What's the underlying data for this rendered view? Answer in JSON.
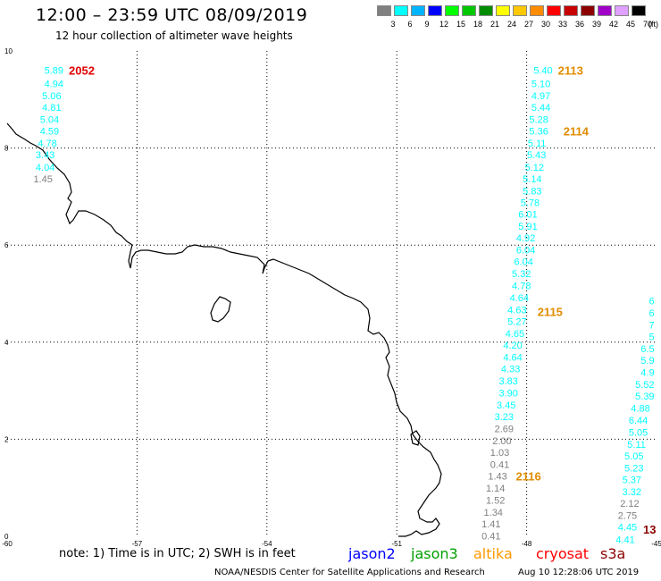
{
  "header": {
    "title": "12:00 – 23:59 UTC 08/09/2019",
    "subtitle": "12 hour collection of altimeter wave heights"
  },
  "color_scale": {
    "labels": [
      "3",
      "6",
      "9",
      "12",
      "15",
      "18",
      "21",
      "24",
      "27",
      "30",
      "33",
      "36",
      "39",
      "42",
      "45",
      "70"
    ],
    "unit": "(ft)",
    "colors": [
      "#808080",
      "#00ffff",
      "#00b4ff",
      "#0000ff",
      "#00ff00",
      "#00c800",
      "#008c00",
      "#ffff00",
      "#ffc800",
      "#ff8c00",
      "#ff0000",
      "#c80000",
      "#8c0000",
      "#a000c8",
      "#e0a0ff",
      "#000000"
    ]
  },
  "map": {
    "lon_ticks": [
      "-60",
      "-57",
      "-54",
      "-51",
      "-48",
      "-45"
    ],
    "lat_ticks": [
      "0",
      "2",
      "4",
      "6",
      "8",
      "10"
    ],
    "lon_range": [
      -60,
      -45
    ],
    "lat_range": [
      0,
      10
    ],
    "gridlines": true
  },
  "passes": [
    {
      "time": "2052",
      "time_color": "#e00000",
      "label_side": "left",
      "values": [
        {
          "v": "5.89",
          "lon": -58.7,
          "lat": 9.6
        },
        {
          "v": "4.94",
          "lon": -58.7,
          "lat": 9.33
        },
        {
          "v": "5.06",
          "lon": -58.75,
          "lat": 9.08
        },
        {
          "v": "4.81",
          "lon": -58.75,
          "lat": 8.84
        },
        {
          "v": "5.04",
          "lon": -58.8,
          "lat": 8.59
        },
        {
          "v": "4.59",
          "lon": -58.8,
          "lat": 8.35
        },
        {
          "v": "4.78",
          "lon": -58.85,
          "lat": 8.1
        },
        {
          "v": "3.43",
          "lon": -58.9,
          "lat": 7.86
        },
        {
          "v": "4.04",
          "lon": -58.9,
          "lat": 7.61
        },
        {
          "v": "1.45",
          "lon": -58.95,
          "lat": 7.37
        }
      ]
    },
    {
      "time": "2113",
      "time_color": "#e08c00",
      "label_side": "left",
      "values": [
        {
          "v": "5.40",
          "lon": -47.4,
          "lat": 9.6
        },
        {
          "v": "5.10",
          "lon": -47.45,
          "lat": 9.33
        },
        {
          "v": "4.97",
          "lon": -47.45,
          "lat": 9.08
        },
        {
          "v": "5.44",
          "lon": -47.45,
          "lat": 8.84
        },
        {
          "v": "5.28",
          "lon": -47.5,
          "lat": 8.59
        },
        {
          "v": "5.36",
          "lon": -47.5,
          "lat": 8.35
        },
        {
          "v": "5.11",
          "lon": -47.55,
          "lat": 8.1
        },
        {
          "v": "5.43",
          "lon": -47.55,
          "lat": 7.86
        },
        {
          "v": "5.12",
          "lon": -47.6,
          "lat": 7.61
        },
        {
          "v": "5.14",
          "lon": -47.65,
          "lat": 7.37
        },
        {
          "v": "5.83",
          "lon": -47.65,
          "lat": 7.12
        },
        {
          "v": "5.78",
          "lon": -47.7,
          "lat": 6.88
        },
        {
          "v": "6.01",
          "lon": -47.75,
          "lat": 6.64
        },
        {
          "v": "5.91",
          "lon": -47.75,
          "lat": 6.39
        },
        {
          "v": "4.92",
          "lon": -47.8,
          "lat": 6.15
        },
        {
          "v": "6.04",
          "lon": -47.8,
          "lat": 5.9
        },
        {
          "v": "6.04",
          "lon": -47.85,
          "lat": 5.66
        },
        {
          "v": "5.32",
          "lon": -47.9,
          "lat": 5.41
        },
        {
          "v": "4.78",
          "lon": -47.9,
          "lat": 5.17
        },
        {
          "v": "4.64",
          "lon": -47.95,
          "lat": 4.92
        },
        {
          "v": "4.63",
          "lon": -48.0,
          "lat": 4.67
        },
        {
          "v": "5.27",
          "lon": -48.0,
          "lat": 4.43
        },
        {
          "v": "4.65",
          "lon": -48.05,
          "lat": 4.18
        },
        {
          "v": "4.20",
          "lon": -48.1,
          "lat": 3.94
        },
        {
          "v": "4.64",
          "lon": -48.1,
          "lat": 3.69
        },
        {
          "v": "4.33",
          "lon": -48.15,
          "lat": 3.45
        },
        {
          "v": "3.83",
          "lon": -48.2,
          "lat": 3.2
        },
        {
          "v": "3.90",
          "lon": -48.2,
          "lat": 2.96
        },
        {
          "v": "3.45",
          "lon": -48.25,
          "lat": 2.71
        },
        {
          "v": "3.23",
          "lon": -48.3,
          "lat": 2.47
        },
        {
          "v": "2.69",
          "lon": -48.3,
          "lat": 2.22
        },
        {
          "v": "2.00",
          "lon": -48.35,
          "lat": 1.97
        },
        {
          "v": "1.03",
          "lon": -48.4,
          "lat": 1.73
        },
        {
          "v": "0.41",
          "lon": -48.4,
          "lat": 1.48
        },
        {
          "v": "1.43",
          "lon": -48.45,
          "lat": 1.24
        },
        {
          "v": "1.14",
          "lon": -48.5,
          "lat": 0.99
        },
        {
          "v": "1.52",
          "lon": -48.5,
          "lat": 0.75
        },
        {
          "v": "1.34",
          "lon": -48.55,
          "lat": 0.5
        },
        {
          "v": "1.41",
          "lon": -48.6,
          "lat": 0.26
        },
        {
          "v": "0.41",
          "lon": -48.6,
          "lat": 0.01
        }
      ],
      "extra_times": [
        {
          "t": "2114",
          "lon": -47.15,
          "lat": 8.35
        },
        {
          "t": "2115",
          "lon": -47.75,
          "lat": 4.63
        },
        {
          "t": "2116",
          "lon": -48.25,
          "lat": 1.24
        }
      ]
    },
    {
      "time": "13",
      "time_color": "#8c0000",
      "label_side": "left",
      "values": [
        {
          "v": "6",
          "lon": -45.05,
          "lat": 4.85
        },
        {
          "v": "6",
          "lon": -45.05,
          "lat": 4.6
        },
        {
          "v": "7",
          "lon": -45.05,
          "lat": 4.36
        },
        {
          "v": "5",
          "lon": -45.05,
          "lat": 4.12
        },
        {
          "v": "6.5",
          "lon": -45.05,
          "lat": 3.87
        },
        {
          "v": "5.9",
          "lon": -45.05,
          "lat": 3.63
        },
        {
          "v": "4.9",
          "lon": -45.05,
          "lat": 3.38
        },
        {
          "v": "5.52",
          "lon": -45.05,
          "lat": 3.13
        },
        {
          "v": "5.39",
          "lon": -45.05,
          "lat": 2.89
        },
        {
          "v": "4.88",
          "lon": -45.15,
          "lat": 2.64
        },
        {
          "v": "6.44",
          "lon": -45.2,
          "lat": 2.39
        },
        {
          "v": "5.05",
          "lon": -45.2,
          "lat": 2.15
        },
        {
          "v": "5.11",
          "lon": -45.25,
          "lat": 1.9
        },
        {
          "v": "5.05",
          "lon": -45.3,
          "lat": 1.66
        },
        {
          "v": "5.23",
          "lon": -45.3,
          "lat": 1.41
        },
        {
          "v": "5.37",
          "lon": -45.35,
          "lat": 1.17
        },
        {
          "v": "3.32",
          "lon": -45.35,
          "lat": 0.92
        },
        {
          "v": "2.12",
          "lon": -45.4,
          "lat": 0.68
        },
        {
          "v": "2.75",
          "lon": -45.45,
          "lat": 0.43
        },
        {
          "v": "4.45",
          "lon": -45.45,
          "lat": 0.19
        },
        {
          "v": "4.41",
          "lon": -45.5,
          "lat": -0.06
        }
      ]
    }
  ],
  "footer": {
    "note": "note: 1) Time is in UTC; 2) SWH is in feet",
    "satellites": [
      {
        "name": "jason2",
        "color": "#0000ff"
      },
      {
        "name": "jason3",
        "color": "#00a000"
      },
      {
        "name": "altika",
        "color": "#ff9900"
      },
      {
        "name": "cryosat",
        "color": "#ff0000"
      },
      {
        "name": "s3a",
        "color": "#8c0000"
      }
    ],
    "credit": "NOAA/NESDIS Center for Satellite Applications and Research",
    "timestamp": "Aug 10 12:28:06 UTC 2019"
  }
}
